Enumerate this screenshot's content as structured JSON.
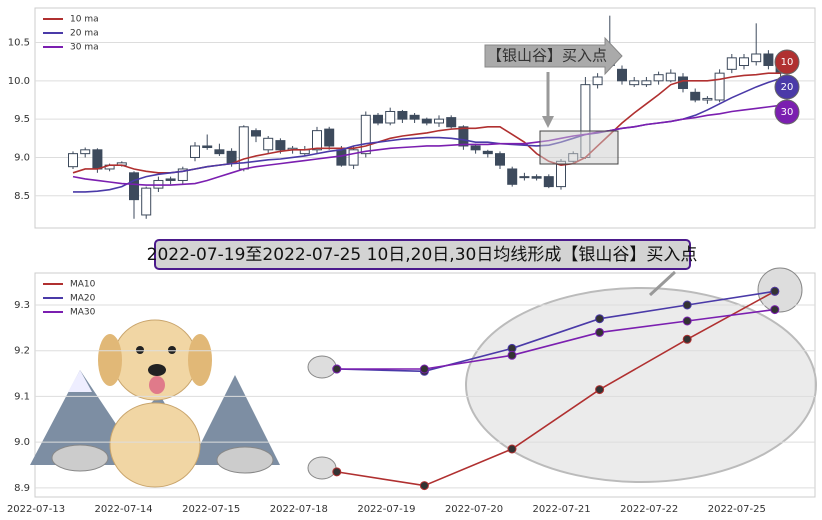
{
  "chart_data": [
    {
      "type": "candlestick",
      "open": [
        8.88,
        9.05,
        9.1,
        8.85,
        8.9,
        8.8,
        8.25,
        8.6,
        8.72,
        8.7,
        9.0,
        9.15,
        9.1,
        9.08,
        8.85,
        9.35,
        9.1,
        9.22,
        9.1,
        9.05,
        9.1,
        9.37,
        9.1,
        8.9,
        9.05,
        9.55,
        9.45,
        9.6,
        9.55,
        9.5,
        9.45,
        9.52,
        9.4,
        9.15,
        9.08,
        9.05,
        8.85,
        8.75,
        8.75,
        8.75,
        8.62,
        8.95,
        9.0,
        9.95,
        10.2,
        10.15,
        9.95,
        9.95,
        10.0,
        10.0,
        10.05,
        9.85,
        9.75,
        9.75,
        10.15,
        10.2,
        10.25,
        10.35,
        10.2
      ],
      "close": [
        9.05,
        9.1,
        8.85,
        8.9,
        8.93,
        8.45,
        8.6,
        8.7,
        8.7,
        8.85,
        9.15,
        9.13,
        9.05,
        8.92,
        9.4,
        9.28,
        9.25,
        9.1,
        9.12,
        9.1,
        9.35,
        9.15,
        8.9,
        9.1,
        9.55,
        9.45,
        9.6,
        9.5,
        9.5,
        9.45,
        9.5,
        9.4,
        9.15,
        9.1,
        9.05,
        8.9,
        8.65,
        8.75,
        8.73,
        8.62,
        8.95,
        9.05,
        9.95,
        10.05,
        10.3,
        10.0,
        10.0,
        10.0,
        10.08,
        10.1,
        9.9,
        9.75,
        9.77,
        10.1,
        10.3,
        10.3,
        10.35,
        10.2,
        10.1
      ],
      "high": [
        9.08,
        9.13,
        9.12,
        8.92,
        8.95,
        8.82,
        8.62,
        8.75,
        8.75,
        8.88,
        9.2,
        9.3,
        9.18,
        9.12,
        9.42,
        9.38,
        9.28,
        9.25,
        9.15,
        9.15,
        9.4,
        9.4,
        9.15,
        9.15,
        9.6,
        9.58,
        9.65,
        9.62,
        9.58,
        9.52,
        9.55,
        9.55,
        9.42,
        9.18,
        9.1,
        9.08,
        8.88,
        8.8,
        8.78,
        8.78,
        8.98,
        9.08,
        10.05,
        10.1,
        10.85,
        10.2,
        10.05,
        10.05,
        10.12,
        10.15,
        10.1,
        9.9,
        9.8,
        10.15,
        10.35,
        10.35,
        10.75,
        10.4,
        10.25
      ],
      "low": [
        8.85,
        9.0,
        8.8,
        8.82,
        8.88,
        8.2,
        8.2,
        8.55,
        8.65,
        8.65,
        8.95,
        9.1,
        9.02,
        8.88,
        8.82,
        9.2,
        9.05,
        9.05,
        9.05,
        9.02,
        9.05,
        9.1,
        8.88,
        8.85,
        9.0,
        9.42,
        9.42,
        9.45,
        9.45,
        9.42,
        9.4,
        9.38,
        9.1,
        9.05,
        9.0,
        8.85,
        8.62,
        8.7,
        8.7,
        8.6,
        8.58,
        8.92,
        8.98,
        9.9,
        10.15,
        9.95,
        9.92,
        9.92,
        9.95,
        9.98,
        9.85,
        9.72,
        9.7,
        9.72,
        10.1,
        10.15,
        10.2,
        10.15,
        10.05
      ],
      "up_color": "#ffffff",
      "down_color": "#3d4a5c",
      "series": [
        {
          "name": "10 ma",
          "color": "#b03030",
          "values": [
            8.8,
            8.85,
            8.85,
            8.9,
            8.9,
            8.85,
            8.82,
            8.8,
            8.8,
            8.82,
            8.85,
            8.88,
            8.9,
            8.92,
            8.98,
            9.02,
            9.05,
            9.08,
            9.1,
            9.1,
            9.12,
            9.12,
            9.12,
            9.12,
            9.15,
            9.2,
            9.25,
            9.28,
            9.3,
            9.32,
            9.35,
            9.37,
            9.38,
            9.38,
            9.4,
            9.4,
            9.3,
            9.2,
            9.05,
            8.95,
            8.9,
            8.92,
            9.0,
            9.15,
            9.3,
            9.45,
            9.58,
            9.7,
            9.82,
            9.95,
            10.0,
            10.0,
            10.0,
            10.02,
            10.05,
            10.07,
            10.08,
            10.1,
            10.1
          ]
        },
        {
          "name": "20 ma",
          "color": "#4a3aa8",
          "values": [
            8.55,
            8.55,
            8.56,
            8.58,
            8.62,
            8.7,
            8.75,
            8.78,
            8.8,
            8.82,
            8.85,
            8.88,
            8.9,
            8.92,
            8.93,
            8.95,
            8.97,
            8.98,
            9.0,
            9.02,
            9.05,
            9.08,
            9.1,
            9.15,
            9.18,
            9.2,
            9.22,
            9.24,
            9.25,
            9.26,
            9.26,
            9.25,
            9.23,
            9.2,
            9.2,
            9.18,
            9.17,
            9.16,
            9.15,
            9.16,
            9.2,
            9.25,
            9.3,
            9.32,
            9.35,
            9.38,
            9.4,
            9.43,
            9.45,
            9.47,
            9.5,
            9.55,
            9.62,
            9.7,
            9.78,
            9.85,
            9.92,
            9.98,
            10.03
          ]
        },
        {
          "name": "30 ma",
          "color": "#7b1fb0",
          "values": [
            8.75,
            8.72,
            8.7,
            8.68,
            8.66,
            8.65,
            8.64,
            8.64,
            8.64,
            8.65,
            8.66,
            8.7,
            8.75,
            8.8,
            8.85,
            8.88,
            8.9,
            8.92,
            8.94,
            8.96,
            8.98,
            9.0,
            9.02,
            9.05,
            9.08,
            9.1,
            9.12,
            9.13,
            9.14,
            9.15,
            9.15,
            9.16,
            9.17,
            9.17,
            9.17,
            9.18,
            9.18,
            9.18,
            9.2,
            9.22,
            9.25,
            9.28,
            9.3,
            9.33,
            9.35,
            9.38,
            9.4,
            9.43,
            9.45,
            9.47,
            9.5,
            9.52,
            9.55,
            9.57,
            9.6,
            9.62,
            9.64,
            9.66,
            9.68
          ]
        }
      ],
      "ylim": [
        8.08,
        10.95
      ],
      "yticks": [
        8.5,
        {
          "value": 9,
          "label": "9.0"
        },
        9.5,
        {
          "value": 10,
          "label": "10.0"
        },
        10.5
      ],
      "grid": true,
      "legend": "upper left",
      "annotation": "【银山谷】买入点",
      "end_labels": [
        "10",
        "20",
        "30"
      ]
    },
    {
      "type": "line",
      "title": "2022-07-19至2022-07-25 10日,20日,30日均线形成【银山谷】买入点",
      "categories": [
        "2022-07-13",
        "2022-07-14",
        "2022-07-15",
        "2022-07-18",
        "2022-07-19",
        "2022-07-20",
        "2022-07-21",
        "2022-07-22",
        "2022-07-25"
      ],
      "series": [
        {
          "name": "MA10",
          "color": "#b03030",
          "values": [
            null,
            null,
            null,
            8.935,
            8.905,
            8.985,
            9.115,
            9.225,
            9.33
          ]
        },
        {
          "name": "MA20",
          "color": "#4a3aa8",
          "values": [
            null,
            null,
            null,
            9.16,
            9.155,
            9.205,
            9.27,
            9.3,
            9.33
          ]
        },
        {
          "name": "MA30",
          "color": "#7b1fb0",
          "values": [
            null,
            null,
            null,
            9.16,
            9.16,
            9.19,
            9.24,
            9.265,
            9.29
          ]
        }
      ],
      "ylim": [
        8.88,
        9.37
      ],
      "yticks": [
        8.9,
        {
          "value": 9,
          "label": "9.0"
        },
        9.1,
        9.2,
        9.3
      ],
      "grid": true,
      "legend": "upper left"
    }
  ]
}
